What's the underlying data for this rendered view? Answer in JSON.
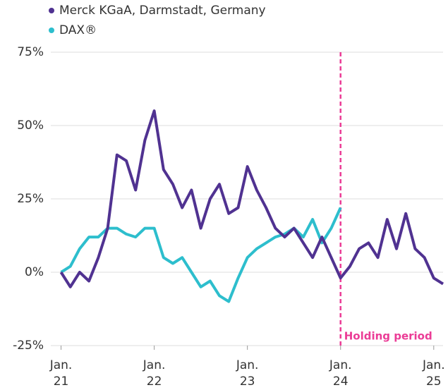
{
  "chart_data": {
    "type": "line",
    "x": [
      2021.0,
      2021.1,
      2021.2,
      2021.3,
      2021.4,
      2021.5,
      2021.6,
      2021.7,
      2021.8,
      2021.9,
      2022.0,
      2022.1,
      2022.2,
      2022.3,
      2022.4,
      2022.5,
      2022.6,
      2022.7,
      2022.8,
      2022.9,
      2023.0,
      2023.1,
      2023.2,
      2023.3,
      2023.4,
      2023.5,
      2023.6,
      2023.7,
      2023.8,
      2023.9,
      2024.0,
      2024.1,
      2024.2,
      2024.3,
      2024.4,
      2024.5,
      2024.6,
      2024.7,
      2024.8,
      2024.9,
      2025.0,
      2025.1
    ],
    "series": [
      {
        "name": "Merck KGaA, Darmstadt, Germany",
        "color": "#503291",
        "values": [
          0,
          -5,
          0,
          -3,
          5,
          15,
          40,
          38,
          28,
          45,
          55,
          35,
          30,
          22,
          28,
          15,
          25,
          30,
          20,
          22,
          36,
          28,
          22,
          15,
          12,
          15,
          10,
          5,
          12,
          5,
          -2,
          2,
          8,
          10,
          5,
          18,
          8,
          20,
          8,
          5,
          -2,
          -4
        ]
      },
      {
        "name": "DAX®",
        "color": "#2dbecd",
        "values": [
          0,
          2,
          8,
          12,
          12,
          15,
          15,
          13,
          12,
          15,
          15,
          5,
          3,
          5,
          0,
          -5,
          -3,
          -8,
          -10,
          -2,
          5,
          8,
          10,
          12,
          13,
          15,
          12,
          18,
          10,
          15,
          22,
          null,
          null,
          null,
          null,
          null,
          null,
          null,
          null,
          null,
          null,
          null
        ]
      }
    ],
    "xlim": [
      2020.89,
      2025.1
    ],
    "xticks": [
      {
        "value": 2021,
        "label": "Jan. 21"
      },
      {
        "value": 2022,
        "label": "Jan. 22"
      },
      {
        "value": 2023,
        "label": "Jan. 23"
      },
      {
        "value": 2024,
        "label": "Jan. 24"
      },
      {
        "value": 2025,
        "label": "Jan. 25"
      }
    ],
    "ylim": [
      -25,
      75
    ],
    "yticks": [
      {
        "value": -25,
        "label": "-25%"
      },
      {
        "value": 0,
        "label": "0%"
      },
      {
        "value": 25,
        "label": "25%"
      },
      {
        "value": 50,
        "label": "50%"
      },
      {
        "value": 75,
        "label": "75%"
      }
    ],
    "grid": true,
    "annotation": {
      "text": "Holding period",
      "x": 2024,
      "color": "#eb3c96"
    }
  }
}
